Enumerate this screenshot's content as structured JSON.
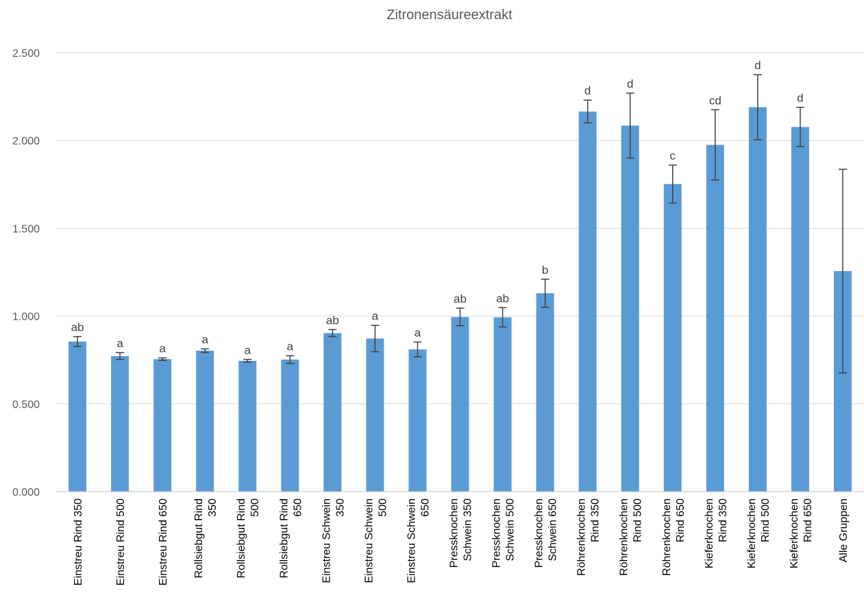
{
  "chart_data": {
    "type": "bar",
    "title": "Zitronensäureextrakt",
    "xlabel": "",
    "ylabel": "",
    "ylim": [
      0,
      2.5
    ],
    "yticks": [
      0,
      0.5,
      1.0,
      1.5,
      2.0,
      2.5
    ],
    "ytick_labels": [
      "0.000",
      "0.500",
      "1.000",
      "1.500",
      "2.000",
      "2.500"
    ],
    "grid": true,
    "legend": "none",
    "bar_color": "#5b9bd5",
    "error_bar_color": "#404040",
    "categories": [
      [
        "Einstreu Rind 350"
      ],
      [
        "Einstreu Rind 500"
      ],
      [
        "Einstreu Rind 650"
      ],
      [
        "Rollsiebgut Rind",
        "350"
      ],
      [
        "Rollsiebgut Rind",
        "500"
      ],
      [
        "Rollsiebgut Rind",
        "650"
      ],
      [
        "Einstreu Schwein",
        "350"
      ],
      [
        "Einstreu Schwein",
        "500"
      ],
      [
        "Einstreu Schwein",
        "650"
      ],
      [
        "Pressknochen",
        "Schwein 350"
      ],
      [
        "Pressknochen",
        "Schwein 500"
      ],
      [
        "Pressknochen",
        "Schwein 650"
      ],
      [
        "Röhrenknochen",
        "Rind 350"
      ],
      [
        "Röhrenknochen",
        "Rind 500"
      ],
      [
        "Röhrenknochen",
        "Rind 650"
      ],
      [
        "Kieferknochen",
        "Rind 350"
      ],
      [
        "Kieferknochen",
        "Rind 500"
      ],
      [
        "Kieferknochen",
        "Rind 650"
      ],
      [
        "Alle Gruppen"
      ]
    ],
    "values": [
      0.855,
      0.772,
      0.755,
      0.803,
      0.745,
      0.752,
      0.903,
      0.872,
      0.81,
      0.995,
      0.993,
      1.13,
      2.165,
      2.085,
      1.752,
      1.975,
      2.19,
      2.077,
      1.256
    ],
    "errors": [
      0.028,
      0.02,
      0.007,
      0.01,
      0.008,
      0.022,
      0.02,
      0.075,
      0.042,
      0.05,
      0.055,
      0.08,
      0.065,
      0.185,
      0.108,
      0.2,
      0.185,
      0.112,
      0.58
    ],
    "significance": [
      "ab",
      "a",
      "a",
      "a",
      "a",
      "a",
      "ab",
      "a",
      "a",
      "ab",
      "ab",
      "b",
      "d",
      "d",
      "c",
      "cd",
      "d",
      "d",
      ""
    ]
  }
}
